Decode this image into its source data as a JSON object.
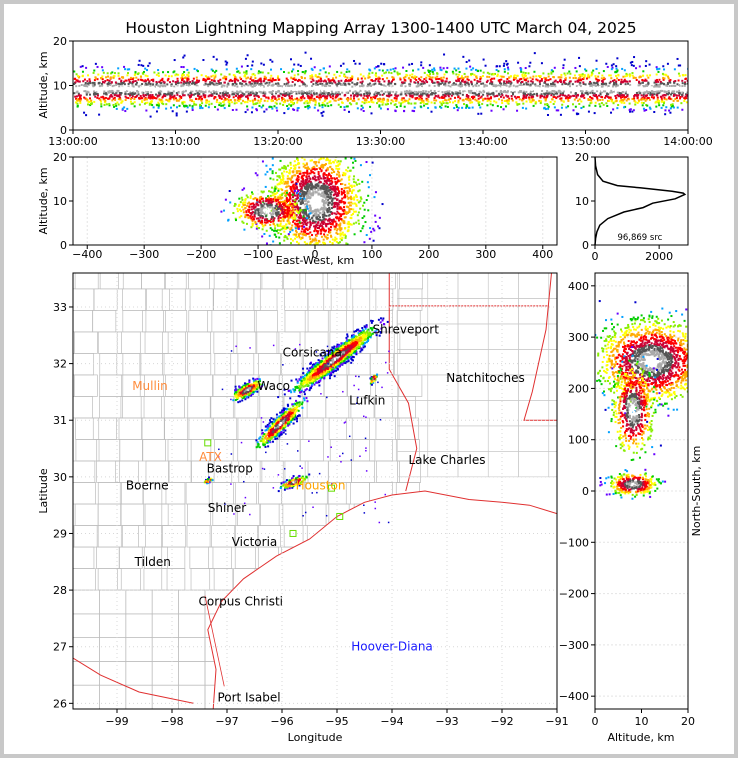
{
  "title": "Houston Lightning Mapping Array 1300-1400 UTC March 04, 2025",
  "chart_data": [
    {
      "id": "time_height",
      "type": "heatmap",
      "xlabel": "",
      "ylabel": "Altitude, km",
      "x_ticks": [
        "13:00:00",
        "13:10:00",
        "13:20:00",
        "13:30:00",
        "13:40:00",
        "13:50:00",
        "14:00:00"
      ],
      "y_ticks": [
        0,
        10,
        20
      ],
      "xlim": [
        "13:00:00",
        "14:00:00"
      ],
      "ylim": [
        0,
        20
      ],
      "band_center_km": 9,
      "band_halfwidth_km": 5
    },
    {
      "id": "ew_altitude",
      "type": "heatmap",
      "xlabel": "East-West, km",
      "ylabel": "Altitude, km",
      "x_ticks": [
        -400,
        -300,
        -200,
        -100,
        0,
        100,
        200,
        300,
        400
      ],
      "y_ticks": [
        0,
        10,
        20
      ],
      "xlim": [
        -425,
        425
      ],
      "ylim": [
        0,
        20
      ],
      "clusters": [
        {
          "x": 0,
          "y": 10,
          "rx": 55,
          "ry": 8
        },
        {
          "x": -85,
          "y": 8,
          "rx": 40,
          "ry": 3
        }
      ]
    },
    {
      "id": "altitude_histogram",
      "type": "line",
      "x_ticks": [
        0,
        2000
      ],
      "y_ticks": [
        0,
        10,
        20
      ],
      "xlim": [
        0,
        2900
      ],
      "ylim": [
        0,
        20
      ],
      "annotation": "96,869 src",
      "profile": [
        [
          0,
          20
        ],
        [
          20,
          18
        ],
        [
          80,
          16
        ],
        [
          250,
          14.5
        ],
        [
          700,
          13.5
        ],
        [
          1400,
          13
        ],
        [
          2400,
          12.2
        ],
        [
          2750,
          11.8
        ],
        [
          2800,
          11.5
        ],
        [
          2500,
          10.5
        ],
        [
          1800,
          9.5
        ],
        [
          1500,
          8.5
        ],
        [
          900,
          7.5
        ],
        [
          400,
          6
        ],
        [
          150,
          4.5
        ],
        [
          60,
          3
        ],
        [
          20,
          1.5
        ],
        [
          0,
          0
        ]
      ]
    },
    {
      "id": "plan_view",
      "type": "scatter",
      "xlabel": "Longitude",
      "ylabel": "Latitude",
      "x_ticks": [
        -99,
        -98,
        -97,
        -96,
        -95,
        -94,
        -93,
        -92,
        -91
      ],
      "y_ticks": [
        26,
        27,
        28,
        29,
        30,
        31,
        32,
        33
      ],
      "xlim": [
        -99.8,
        -91
      ],
      "ylim": [
        25.9,
        33.6
      ],
      "labels": [
        {
          "text": "Shreveport",
          "lon": -93.75,
          "lat": 32.6,
          "color": "#000000"
        },
        {
          "text": "Corsicana",
          "lon": -95.45,
          "lat": 32.2,
          "color": "#000000"
        },
        {
          "text": "Natchitoches",
          "lon": -92.3,
          "lat": 31.75,
          "color": "#000000"
        },
        {
          "text": "Mullin",
          "lon": -98.4,
          "lat": 31.6,
          "color": "#ff8c3c"
        },
        {
          "text": "Waco",
          "lon": -96.15,
          "lat": 31.6,
          "color": "#000000"
        },
        {
          "text": "Lufkin",
          "lon": -94.45,
          "lat": 31.35,
          "color": "#000000"
        },
        {
          "text": "ATX",
          "lon": -97.3,
          "lat": 30.35,
          "color": "#ff8c3c"
        },
        {
          "text": "Bastrop",
          "lon": -96.95,
          "lat": 30.15,
          "color": "#000000"
        },
        {
          "text": "Lake Charles",
          "lon": -93.0,
          "lat": 30.3,
          "color": "#000000"
        },
        {
          "text": "Houston",
          "lon": -95.3,
          "lat": 29.85,
          "color": "#ffa500"
        },
        {
          "text": "Boerne",
          "lon": -98.45,
          "lat": 29.85,
          "color": "#000000"
        },
        {
          "text": "Shiner",
          "lon": -97.0,
          "lat": 29.45,
          "color": "#000000"
        },
        {
          "text": "Victoria",
          "lon": -96.5,
          "lat": 28.85,
          "color": "#000000"
        },
        {
          "text": "Tilden",
          "lon": -98.35,
          "lat": 28.5,
          "color": "#000000"
        },
        {
          "text": "Corpus Christi",
          "lon": -96.75,
          "lat": 27.8,
          "color": "#000000"
        },
        {
          "text": "Hoover-Diana",
          "lon": -94.0,
          "lat": 27.0,
          "color": "#1a1aff"
        },
        {
          "text": "Port Isabel",
          "lon": -96.6,
          "lat": 26.1,
          "color": "#000000"
        }
      ],
      "stations": [
        {
          "lon": -97.35,
          "lat": 30.6
        },
        {
          "lon": -95.8,
          "lat": 29.0
        },
        {
          "lon": -95.1,
          "lat": 29.8
        },
        {
          "lon": -94.95,
          "lat": 29.3
        }
      ],
      "storm_clusters": [
        {
          "lon": -95.05,
          "lat": 32.1,
          "len": 1.1,
          "wid": 0.22,
          "rot": -38
        },
        {
          "lon": -96.65,
          "lat": 31.55,
          "len": 0.38,
          "wid": 0.16,
          "rot": -30
        },
        {
          "lon": -96.05,
          "lat": 30.95,
          "len": 0.7,
          "wid": 0.18,
          "rot": -45
        },
        {
          "lon": -95.8,
          "lat": 29.92,
          "len": 0.3,
          "wid": 0.11,
          "rot": -20
        },
        {
          "lon": -94.35,
          "lat": 31.75,
          "len": 0.12,
          "wid": 0.06,
          "rot": -60
        },
        {
          "lon": -97.35,
          "lat": 29.95,
          "len": 0.12,
          "wid": 0.05,
          "rot": -30
        }
      ]
    },
    {
      "id": "ns_altitude",
      "type": "heatmap",
      "xlabel": "Altitude, km",
      "ylabel": "North-South, km",
      "x_ticks": [
        0,
        10,
        20
      ],
      "y_ticks": [
        -400,
        -300,
        -200,
        -100,
        0,
        100,
        200,
        300,
        400
      ],
      "xlim": [
        0,
        20
      ],
      "ylim": [
        -425,
        425
      ],
      "clusters": [
        {
          "x": 12,
          "y": 255,
          "rx": 8,
          "ry": 55
        },
        {
          "x": 8,
          "y": 160,
          "rx": 3,
          "ry": 60
        },
        {
          "x": 8,
          "y": 15,
          "rx": 3.5,
          "ry": 15
        }
      ]
    }
  ]
}
